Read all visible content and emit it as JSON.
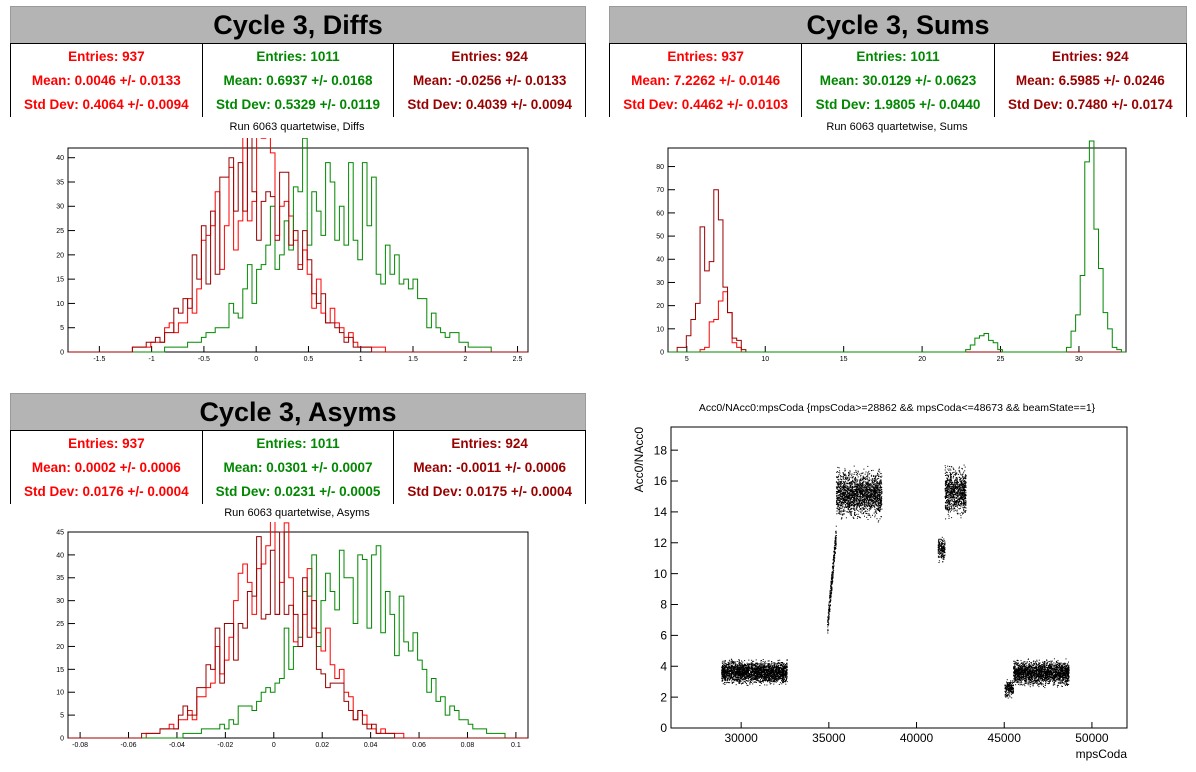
{
  "colors": {
    "red": "#ff0000",
    "green": "#008800",
    "darkred": "#990000",
    "titlebg": "#b4b4b4"
  },
  "diffs": {
    "title": "Cycle 3, Diffs",
    "subtitle": "Run 6063 quartetwise, Diffs",
    "stats": [
      {
        "entries": "Entries: 937",
        "mean": "Mean: 0.0046 +/- 0.0133",
        "std": "Std Dev: 0.4064 +/- 0.0094"
      },
      {
        "entries": "Entries: 1011",
        "mean": "Mean: 0.6937 +/- 0.0168",
        "std": "Std Dev: 0.5329 +/- 0.0119"
      },
      {
        "entries": "Entries: 924",
        "mean": "Mean: -0.0256 +/- 0.0133",
        "std": "Std Dev: 0.4039 +/- 0.0094"
      }
    ]
  },
  "sums": {
    "title": "Cycle 3, Sums",
    "subtitle": "Run 6063 quartetwise, Sums",
    "stats": [
      {
        "entries": "Entries: 937",
        "mean": "Mean: 7.2262 +/- 0.0146",
        "std": "Std Dev: 0.4462 +/- 0.0103"
      },
      {
        "entries": "Entries: 1011",
        "mean": "Mean: 30.0129 +/- 0.0623",
        "std": "Std Dev: 1.9805 +/- 0.0440"
      },
      {
        "entries": "Entries: 924",
        "mean": "Mean: 6.5985 +/- 0.0246",
        "std": "Std Dev: 0.7480 +/- 0.0174"
      }
    ]
  },
  "asyms": {
    "title": "Cycle 3, Asyms",
    "subtitle": "Run 6063 quartetwise, Asyms",
    "stats": [
      {
        "entries": "Entries: 937",
        "mean": "Mean: 0.0002 +/- 0.0006",
        "std": "Std Dev: 0.0176 +/- 0.0004"
      },
      {
        "entries": "Entries: 1011",
        "mean": "Mean: 0.0301 +/- 0.0007",
        "std": "Std Dev: 0.0231 +/- 0.0005"
      },
      {
        "entries": "Entries: 924",
        "mean": "Mean: -0.0011 +/- 0.0006",
        "std": "Std Dev: 0.0175 +/- 0.0004"
      }
    ]
  },
  "scatter": {
    "title": "Acc0/NAcc0:mpsCoda {mpsCoda>=28862 && mpsCoda<=48673 && beamState==1}",
    "xlabel": "mpsCoda",
    "ylabel": "Acc0/NAcc0"
  },
  "chart_data": [
    {
      "type": "histogram",
      "name": "diffs",
      "xlim": [
        -1.8,
        2.6
      ],
      "ylim": [
        0,
        42
      ],
      "xticks": [
        -1.5,
        -1,
        -0.5,
        0,
        0.5,
        1,
        1.5,
        2,
        2.5
      ],
      "yticks": [
        0,
        5,
        10,
        15,
        20,
        25,
        30,
        35,
        40
      ],
      "series": [
        {
          "color": "#ff0000",
          "mean": 0.0046,
          "std": 0.4064,
          "peak": 37,
          "seed": 11
        },
        {
          "color": "#008800",
          "mean": 0.6937,
          "std": 0.5329,
          "peak": 36,
          "seed": 23
        },
        {
          "color": "#990000",
          "mean": -0.0256,
          "std": 0.4039,
          "peak": 38,
          "seed": 37
        }
      ]
    },
    {
      "type": "histogram",
      "name": "sums",
      "xlim": [
        3.8,
        33
      ],
      "ylim": [
        0,
        88
      ],
      "xticks": [
        5,
        10,
        15,
        20,
        25,
        30
      ],
      "yticks": [
        0,
        10,
        20,
        30,
        40,
        50,
        60,
        70,
        80
      ],
      "series": [
        {
          "color": "#ff0000",
          "mean": 7.2262,
          "std": 0.4462,
          "peak": 30,
          "seed": 5
        },
        {
          "color": "#990000",
          "mean": 6.5985,
          "std": 0.748,
          "peak": 57,
          "seed": 9
        },
        {
          "color": "#008800",
          "mean": 30.8,
          "std": 0.55,
          "peak": 84,
          "seed": 17,
          "extra": [
            {
              "mean": 24,
              "std": 0.5,
              "peak": 8
            }
          ]
        }
      ]
    },
    {
      "type": "histogram",
      "name": "asyms",
      "xlim": [
        -0.085,
        0.105
      ],
      "ylim": [
        0,
        45
      ],
      "xticks": [
        -0.08,
        -0.06,
        -0.04,
        -0.02,
        0,
        0.02,
        0.04,
        0.06,
        0.08,
        0.1
      ],
      "yticks": [
        0,
        5,
        10,
        15,
        20,
        25,
        30,
        35,
        40,
        45
      ],
      "series": [
        {
          "color": "#ff0000",
          "mean": 0.0002,
          "std": 0.0176,
          "peak": 38,
          "seed": 41
        },
        {
          "color": "#008800",
          "mean": 0.0301,
          "std": 0.0231,
          "peak": 36,
          "seed": 53
        },
        {
          "color": "#990000",
          "mean": -0.0011,
          "std": 0.0175,
          "peak": 40,
          "seed": 67
        }
      ]
    },
    {
      "type": "scatter",
      "name": "mpsCoda",
      "xlim": [
        26000,
        52000
      ],
      "ylim": [
        0,
        19.5
      ],
      "xticks": [
        30000,
        35000,
        40000,
        45000,
        50000
      ],
      "yticks": [
        0,
        2,
        4,
        6,
        8,
        10,
        12,
        14,
        16,
        18
      ],
      "clusters": [
        {
          "x": [
            28862,
            32600
          ],
          "y": [
            2.7,
            4.6
          ],
          "n": 2600
        },
        {
          "x": [
            34900,
            35400
          ],
          "y": [
            6.6,
            12.6
          ],
          "n": 300,
          "slope": true
        },
        {
          "x": [
            35400,
            38000
          ],
          "y": [
            13.2,
            17.2
          ],
          "n": 2000
        },
        {
          "x": [
            41200,
            41600
          ],
          "y": [
            10.6,
            12.6
          ],
          "n": 200
        },
        {
          "x": [
            41600,
            42800
          ],
          "y": [
            13.3,
            17.4
          ],
          "n": 900
        },
        {
          "x": [
            45000,
            45500
          ],
          "y": [
            1.8,
            3.4
          ],
          "n": 200
        },
        {
          "x": [
            45500,
            48673
          ],
          "y": [
            2.6,
            4.6
          ],
          "n": 2100
        }
      ]
    }
  ]
}
